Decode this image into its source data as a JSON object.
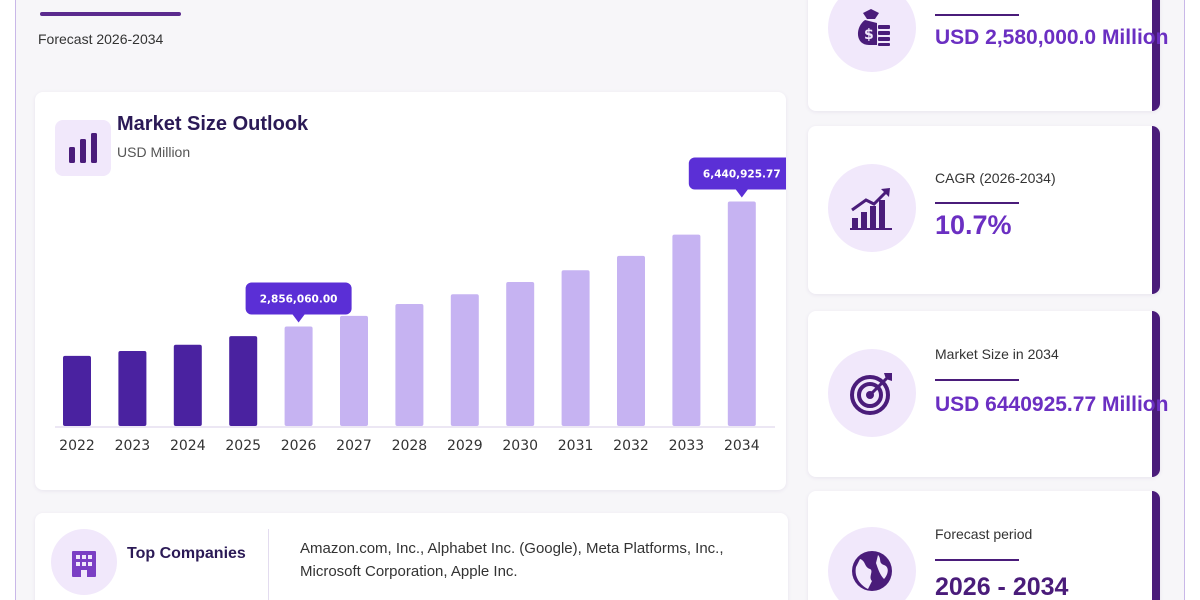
{
  "header": {
    "subtitle": "Forecast 2026-2034"
  },
  "chart_card": {
    "title": "Market Size Outlook",
    "unit": "USD Million"
  },
  "chart_data": {
    "type": "bar",
    "title": "Market Size Outlook",
    "ylabel": "USD Million",
    "categories": [
      "2022",
      "2023",
      "2024",
      "2025",
      "2026",
      "2027",
      "2028",
      "2029",
      "2030",
      "2031",
      "2032",
      "2033",
      "2034"
    ],
    "values": [
      2010000,
      2150000,
      2330000,
      2580000,
      2856060.0,
      3160000,
      3500000,
      3780000,
      4130000,
      4470000,
      4880000,
      5490000,
      6440925.77
    ],
    "ylim": [
      0,
      7000000
    ],
    "historical_color": "#4a22a0",
    "forecast_color": "#c6b3f2",
    "historical_years": [
      "2022",
      "2023",
      "2024",
      "2025"
    ],
    "annotations": [
      {
        "category": "2026",
        "label": "2,856,060.00"
      },
      {
        "category": "2034",
        "label": "6,440,925.77"
      }
    ],
    "annotation_color": "#5b2fd6",
    "grid": false
  },
  "companies": {
    "title": "Top Companies",
    "list": "Amazon.com, Inc., Alphabet Inc. (Google), Meta Platforms, Inc., Microsoft Corporation, Apple Inc."
  },
  "stats": [
    {
      "label": "",
      "value": "USD 2,580,000.0 Million",
      "icon": "money-bag-icon"
    },
    {
      "label": "CAGR (2026-2034)",
      "value": "10.7%",
      "icon": "growth-chart-icon"
    },
    {
      "label": "Market Size in 2034",
      "value": "USD 6440925.77 Million",
      "icon": "target-icon"
    },
    {
      "label": "Forecast period",
      "value": "2026 - 2034",
      "icon": "globe-icon"
    }
  ],
  "colors": {
    "accent": "#6b2fc2",
    "dark": "#4a1c7a",
    "icon_bg": "#f1e8fb"
  }
}
